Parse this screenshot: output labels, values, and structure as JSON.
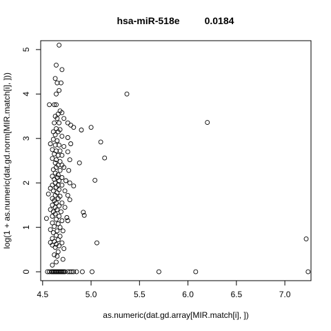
{
  "chart_data": {
    "type": "scatter",
    "title": "hsa-miR-518e",
    "subtitle": "0.0184",
    "xlabel": "as.numeric(dat.gd.array[MIR.match[i], ])",
    "ylabel": "log(1 + as.numeric(dat.gd.norm[MIR.match[i], ]))",
    "xlim": [
      4.48,
      7.27
    ],
    "ylim": [
      -0.2,
      5.2
    ],
    "xticks": [
      "4.5",
      "5.0",
      "5.5",
      "6.0",
      "6.5",
      "7.0"
    ],
    "yticks": [
      "0",
      "1",
      "2",
      "3",
      "4",
      "5"
    ],
    "grid": false,
    "legend": "none",
    "points": [
      [
        4.67,
        5.1
      ],
      [
        4.64,
        4.65
      ],
      [
        4.7,
        4.55
      ],
      [
        4.63,
        4.35
      ],
      [
        4.65,
        4.25
      ],
      [
        4.69,
        4.25
      ],
      [
        4.67,
        4.08
      ],
      [
        4.64,
        4.0
      ],
      [
        5.37,
        4.0
      ],
      [
        4.57,
        3.76
      ],
      [
        4.62,
        3.76
      ],
      [
        4.64,
        3.76
      ],
      [
        4.68,
        3.62
      ],
      [
        4.7,
        3.58
      ],
      [
        4.66,
        3.55
      ],
      [
        4.63,
        3.5
      ],
      [
        4.65,
        3.45
      ],
      [
        4.72,
        3.45
      ],
      [
        4.62,
        3.35
      ],
      [
        4.67,
        3.35
      ],
      [
        4.76,
        3.35
      ],
      [
        4.79,
        3.3
      ],
      [
        4.82,
        3.25
      ],
      [
        5.0,
        3.25
      ],
      [
        6.2,
        3.36
      ],
      [
        4.64,
        3.22
      ],
      [
        4.68,
        3.2
      ],
      [
        4.61,
        3.15
      ],
      [
        4.66,
        3.15
      ],
      [
        4.9,
        3.19
      ],
      [
        4.63,
        3.08
      ],
      [
        4.7,
        3.05
      ],
      [
        4.76,
        3.02
      ],
      [
        4.61,
        2.98
      ],
      [
        4.65,
        2.95
      ],
      [
        5.1,
        2.92
      ],
      [
        4.58,
        2.88
      ],
      [
        4.63,
        2.85
      ],
      [
        4.67,
        2.85
      ],
      [
        4.79,
        2.88
      ],
      [
        4.72,
        2.82
      ],
      [
        4.6,
        2.75
      ],
      [
        4.64,
        2.72
      ],
      [
        4.68,
        2.72
      ],
      [
        4.76,
        2.7
      ],
      [
        4.62,
        2.65
      ],
      [
        4.66,
        2.62
      ],
      [
        4.7,
        2.62
      ],
      [
        5.14,
        2.56
      ],
      [
        4.6,
        2.55
      ],
      [
        4.64,
        2.52
      ],
      [
        4.78,
        2.52
      ],
      [
        4.68,
        2.48
      ],
      [
        4.63,
        2.45
      ],
      [
        4.88,
        2.45
      ],
      [
        4.66,
        2.4
      ],
      [
        4.7,
        2.4
      ],
      [
        4.64,
        2.35
      ],
      [
        4.72,
        2.35
      ],
      [
        4.61,
        2.3
      ],
      [
        4.68,
        2.28
      ],
      [
        4.77,
        2.28
      ],
      [
        4.63,
        2.22
      ],
      [
        4.66,
        2.18
      ],
      [
        4.6,
        2.15
      ],
      [
        4.65,
        2.12
      ],
      [
        4.7,
        2.12
      ],
      [
        4.62,
        2.08
      ],
      [
        5.04,
        2.06
      ],
      [
        4.67,
        2.05
      ],
      [
        4.74,
        2.05
      ],
      [
        4.63,
        2.0
      ],
      [
        4.78,
        2.0
      ],
      [
        4.6,
        1.95
      ],
      [
        4.66,
        1.95
      ],
      [
        4.7,
        1.95
      ],
      [
        4.82,
        1.93
      ],
      [
        4.64,
        1.9
      ],
      [
        4.58,
        1.88
      ],
      [
        4.67,
        1.85
      ],
      [
        4.61,
        1.82
      ],
      [
        4.73,
        1.82
      ],
      [
        4.65,
        1.78
      ],
      [
        4.56,
        1.75
      ],
      [
        4.63,
        1.72
      ],
      [
        4.76,
        1.72
      ],
      [
        4.68,
        1.7
      ],
      [
        4.6,
        1.65
      ],
      [
        4.66,
        1.65
      ],
      [
        4.78,
        1.62
      ],
      [
        4.62,
        1.6
      ],
      [
        4.64,
        1.55
      ],
      [
        4.7,
        1.55
      ],
      [
        4.6,
        1.5
      ],
      [
        4.67,
        1.48
      ],
      [
        4.63,
        1.45
      ],
      [
        4.73,
        1.45
      ],
      [
        4.58,
        1.4
      ],
      [
        4.65,
        1.4
      ],
      [
        4.61,
        1.35
      ],
      [
        4.69,
        1.35
      ],
      [
        4.92,
        1.34
      ],
      [
        4.63,
        1.3
      ],
      [
        4.93,
        1.27
      ],
      [
        4.6,
        1.25
      ],
      [
        4.67,
        1.25
      ],
      [
        4.75,
        1.22
      ],
      [
        4.54,
        1.2
      ],
      [
        4.64,
        1.18
      ],
      [
        4.7,
        1.15
      ],
      [
        4.76,
        1.15
      ],
      [
        4.6,
        1.1
      ],
      [
        4.66,
        1.08
      ],
      [
        4.62,
        1.02
      ],
      [
        4.68,
        1.0
      ],
      [
        4.58,
        0.95
      ],
      [
        4.65,
        0.92
      ],
      [
        4.71,
        0.92
      ],
      [
        4.61,
        0.88
      ],
      [
        4.64,
        0.82
      ],
      [
        4.68,
        0.8
      ],
      [
        4.6,
        0.75
      ],
      [
        4.66,
        0.72
      ],
      [
        7.22,
        0.74
      ],
      [
        4.62,
        0.68
      ],
      [
        4.58,
        0.66
      ],
      [
        4.7,
        0.65
      ],
      [
        5.06,
        0.65
      ],
      [
        4.64,
        0.62
      ],
      [
        4.6,
        0.6
      ],
      [
        4.67,
        0.58
      ],
      [
        4.63,
        0.55
      ],
      [
        4.72,
        0.52
      ],
      [
        4.66,
        0.45
      ],
      [
        4.62,
        0.38
      ],
      [
        4.65,
        0.35
      ],
      [
        4.64,
        0.22
      ],
      [
        4.71,
        0.28
      ],
      [
        4.6,
        0.15
      ],
      [
        4.55,
        0
      ],
      [
        4.57,
        0
      ],
      [
        4.59,
        0
      ],
      [
        4.6,
        0
      ],
      [
        4.61,
        0
      ],
      [
        4.62,
        0
      ],
      [
        4.63,
        0
      ],
      [
        4.64,
        0
      ],
      [
        4.65,
        0
      ],
      [
        4.66,
        0
      ],
      [
        4.67,
        0
      ],
      [
        4.68,
        0
      ],
      [
        4.69,
        0
      ],
      [
        4.7,
        0
      ],
      [
        4.71,
        0
      ],
      [
        4.72,
        0
      ],
      [
        4.73,
        0
      ],
      [
        4.76,
        0
      ],
      [
        4.78,
        0
      ],
      [
        4.8,
        0
      ],
      [
        4.82,
        0
      ],
      [
        4.85,
        0
      ],
      [
        4.91,
        0
      ],
      [
        5.01,
        0
      ],
      [
        5.7,
        0
      ],
      [
        6.08,
        0
      ],
      [
        7.24,
        0
      ]
    ]
  }
}
